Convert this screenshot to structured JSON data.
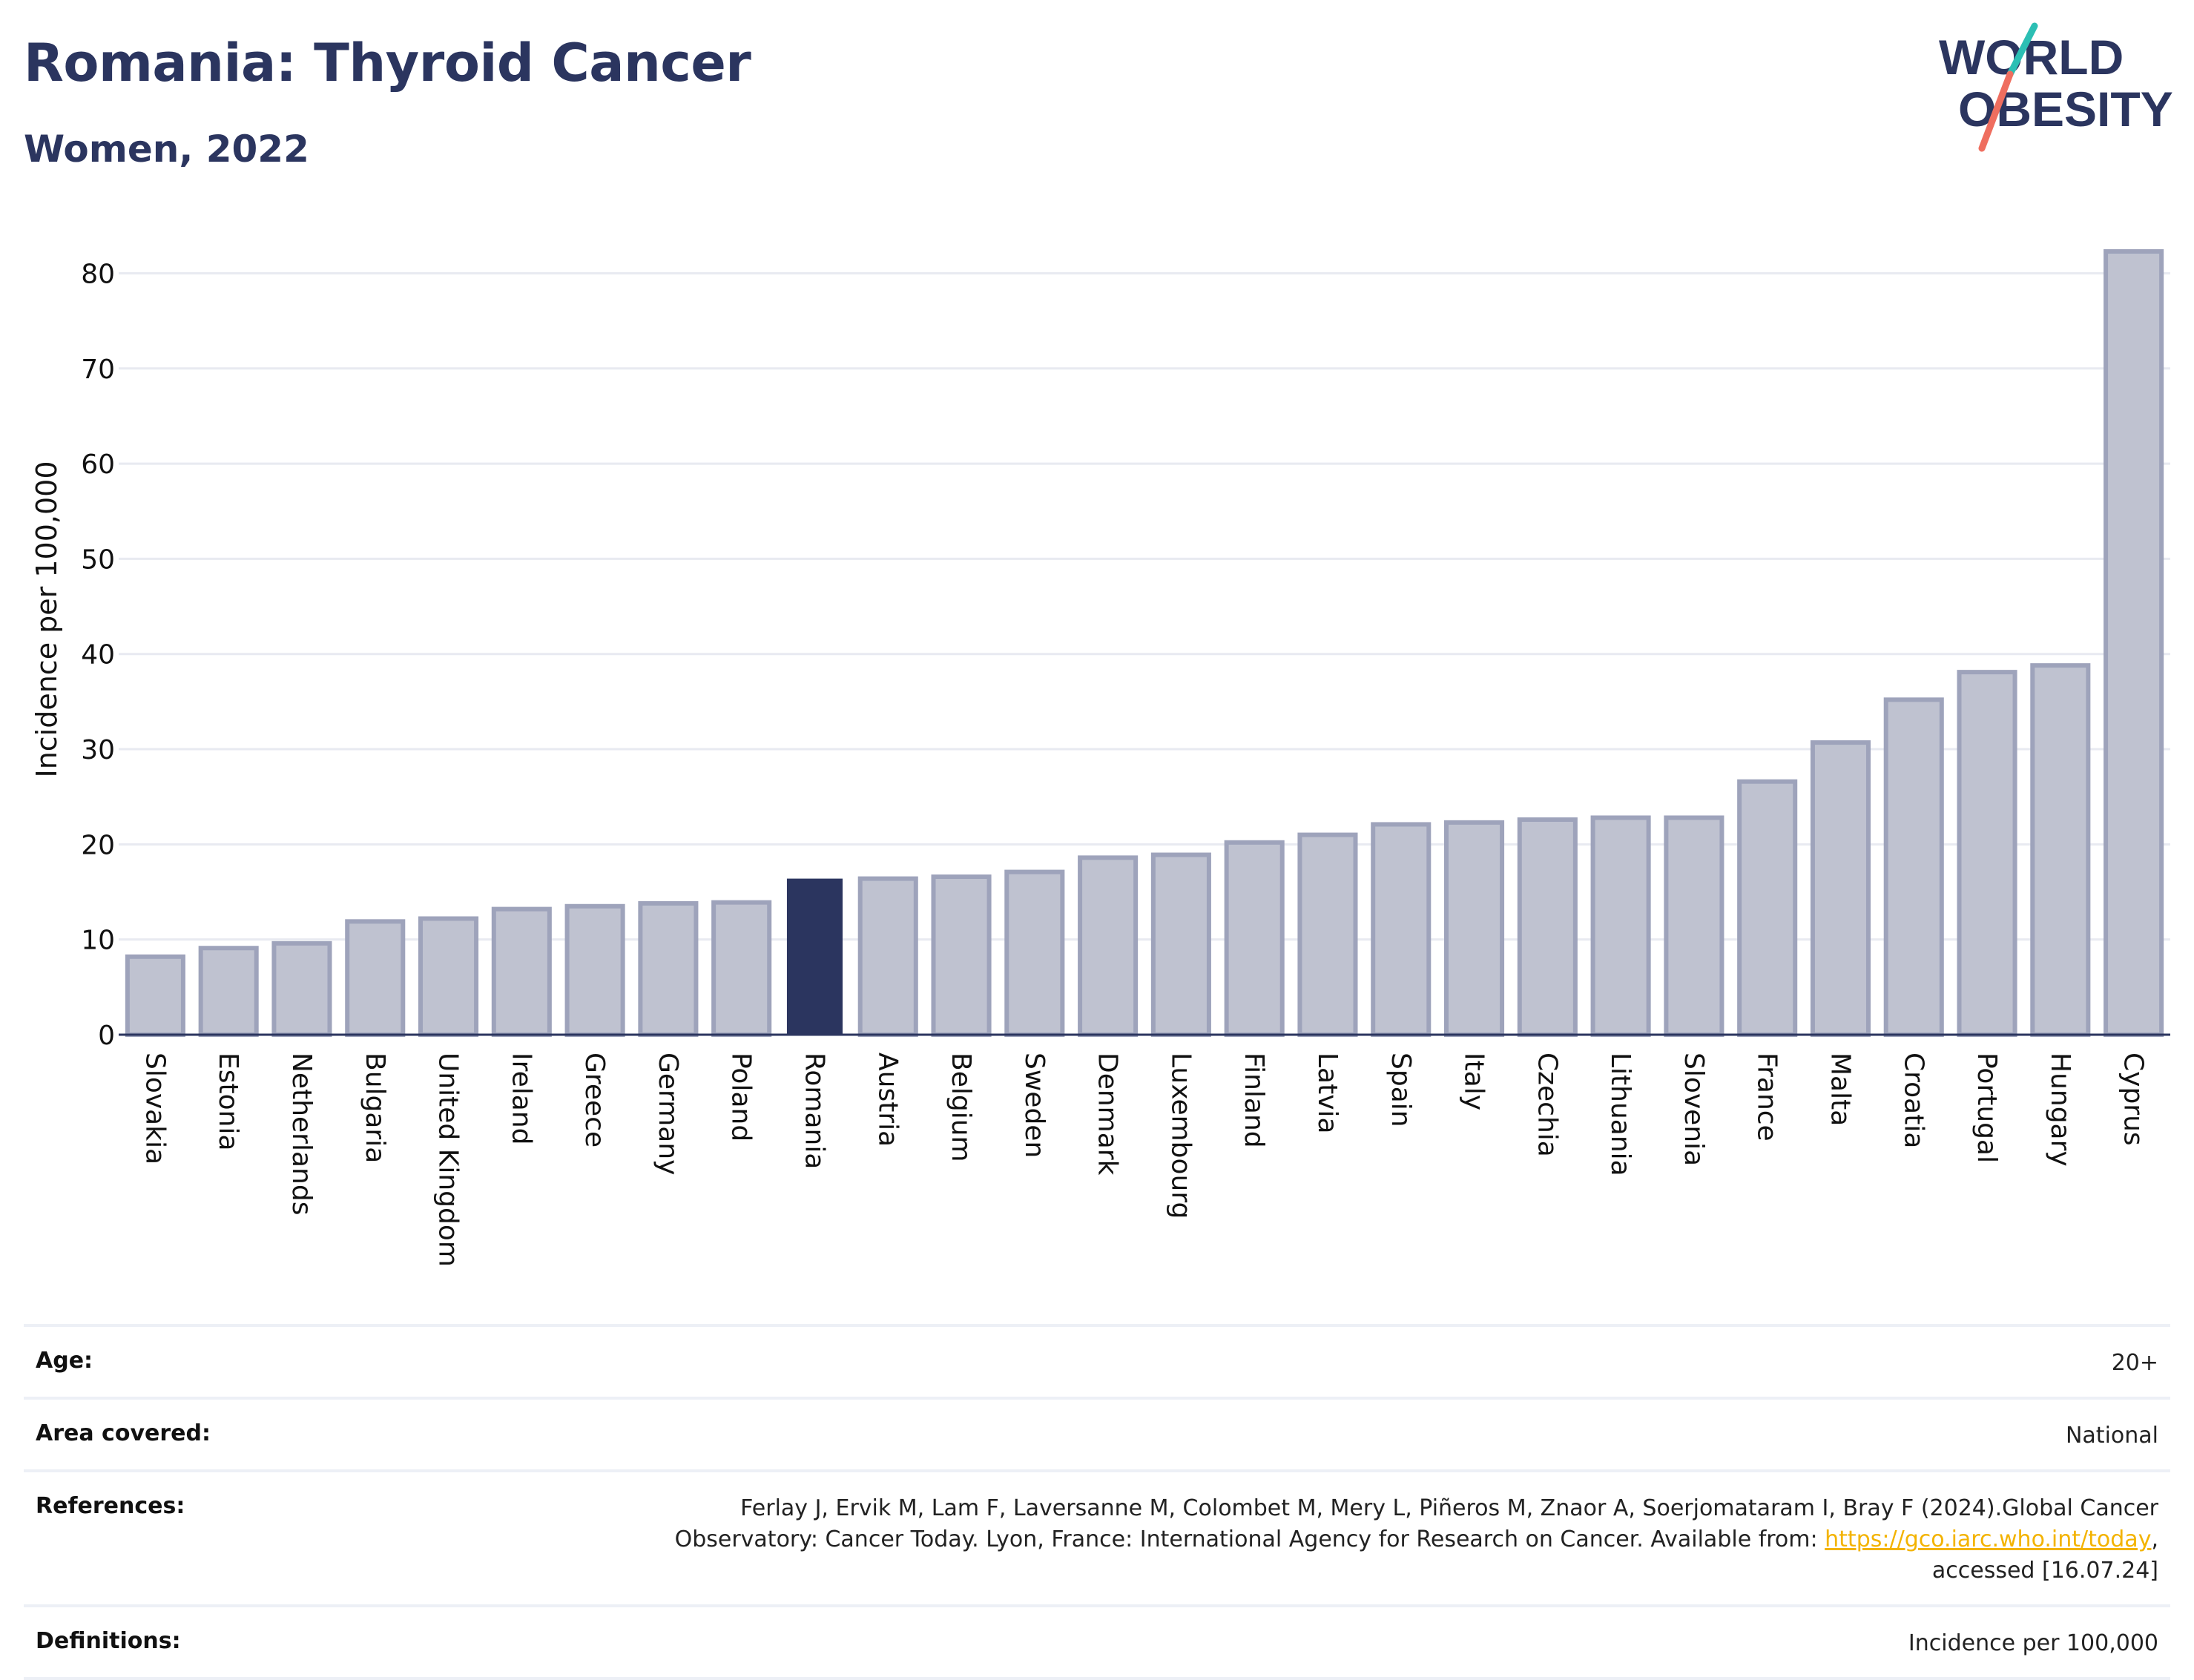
{
  "header": {
    "title": "Romania: Thyroid Cancer",
    "subtitle": "Women, 2022",
    "logo_line1": "WORLD",
    "logo_line2": "OBESITY"
  },
  "colors": {
    "primary": "#2b355f",
    "bar_muted": "#bfc2d0",
    "bar_border": "#9ea3bb",
    "grid": "#e8eaf1",
    "link": "#f3b300",
    "logo_teal": "#2cbfb4",
    "logo_coral": "#ef6e5f"
  },
  "chart_data": {
    "type": "bar",
    "ylabel": "Incidence per 100,000",
    "ylim": [
      0,
      83
    ],
    "yticks": [
      0,
      10,
      20,
      30,
      40,
      50,
      60,
      70,
      80
    ],
    "grid": true,
    "highlight": "Romania",
    "categories": [
      "Slovakia",
      "Estonia",
      "Netherlands",
      "Bulgaria",
      "United Kingdom",
      "Ireland",
      "Greece",
      "Germany",
      "Poland",
      "Romania",
      "Austria",
      "Belgium",
      "Sweden",
      "Denmark",
      "Luxembourg",
      "Finland",
      "Latvia",
      "Spain",
      "Italy",
      "Czechia",
      "Lithuania",
      "Slovenia",
      "France",
      "Malta",
      "Croatia",
      "Portugal",
      "Hungary",
      "Cyprus"
    ],
    "values": [
      8.2,
      9.1,
      9.6,
      11.9,
      12.2,
      13.2,
      13.5,
      13.8,
      13.9,
      16.4,
      16.4,
      16.6,
      17.1,
      18.6,
      18.9,
      20.2,
      21.0,
      22.1,
      22.3,
      22.6,
      22.8,
      22.8,
      26.6,
      30.7,
      35.2,
      38.1,
      38.8,
      82.3
    ]
  },
  "details": {
    "age": {
      "label": "Age:",
      "value": "20+"
    },
    "area": {
      "label": "Area covered:",
      "value": "National"
    },
    "references": {
      "label": "References:",
      "text_before": "Ferlay J, Ervik M, Lam F, Laversanne M, Colombet M, Mery L, Piñeros M, Znaor A, Soerjomataram I, Bray F (2024).Global Cancer Observatory: Cancer Today. Lyon, France: International Agency for Research on Cancer. Available from: ",
      "link_text": "https://gco.iarc.who.int/today",
      "text_after": ", accessed [16.07.24]"
    },
    "definitions": {
      "label": "Definitions:",
      "value": "Incidence per 100,000"
    }
  }
}
